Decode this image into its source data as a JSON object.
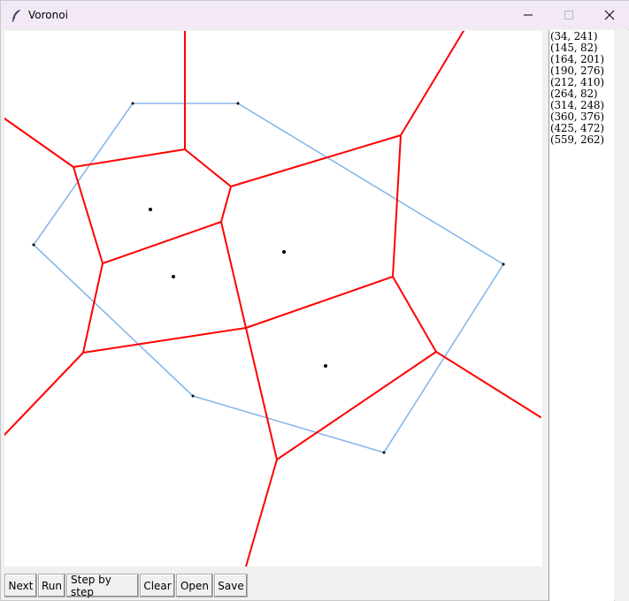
{
  "window": {
    "title": "Voronoi",
    "icon": "feather-icon",
    "controls": [
      "minimize-icon",
      "maximize-icon",
      "close-icon"
    ]
  },
  "colors": {
    "title_bar": "#f3e9f6",
    "voronoi_edges": "#ff0000",
    "convex_hull": "#87b8ea",
    "sites": "#000000",
    "canvas_background": "#ffffff"
  },
  "points": [
    "(34, 241)",
    "(145, 82)",
    "(164, 201)",
    "(190, 276)",
    "(212, 410)",
    "(264, 82)",
    "(314, 248)",
    "(360, 376)",
    "(425, 472)",
    "(559, 262)"
  ],
  "buttons": {
    "next": "Next",
    "run": "Run",
    "step_by_step": "Step by step",
    "clear": "Clear",
    "open": "Open",
    "save": "Save"
  }
}
